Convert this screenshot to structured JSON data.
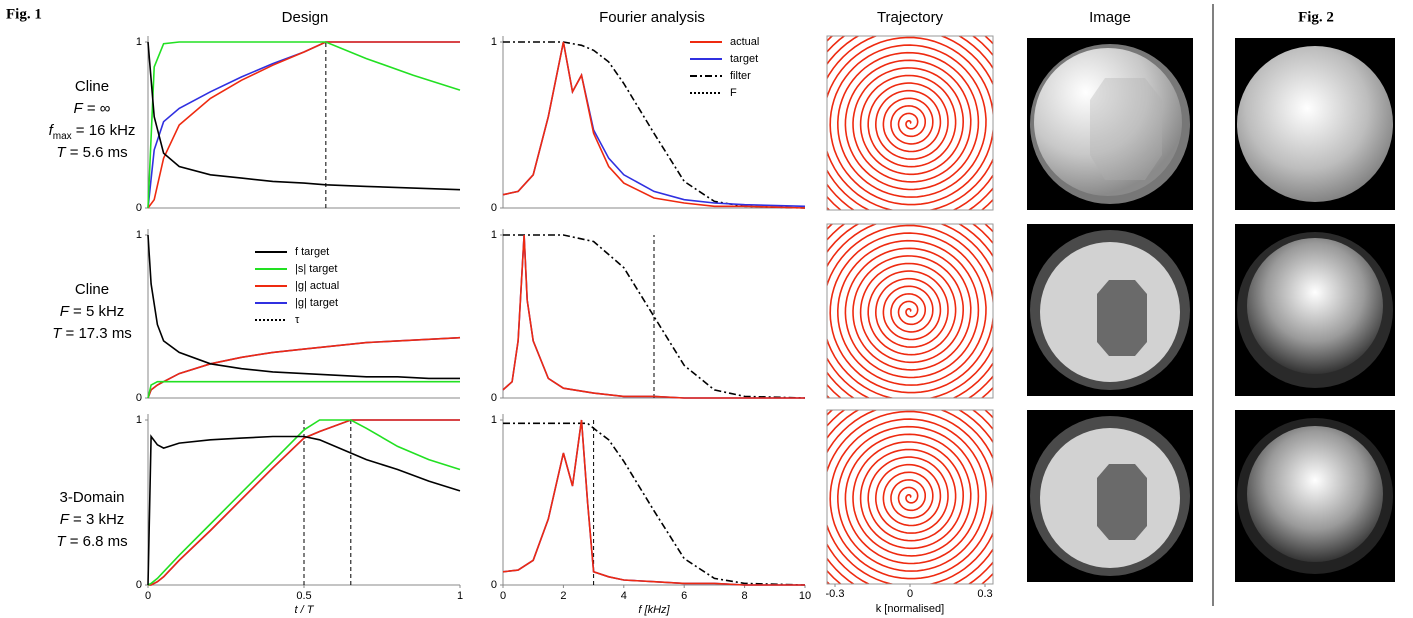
{
  "figure_labels": [
    "Fig. 1",
    "Fig. 2"
  ],
  "column_titles": [
    "Design",
    "Fourier analysis",
    "Trajectory",
    "Image"
  ],
  "row_labels": [
    [
      [
        {
          "text": "Cline"
        }
      ],
      [
        {
          "text": "F",
          "style": "italic"
        },
        {
          "text": " = ∞"
        }
      ],
      [
        {
          "text": "f",
          "style": "italic"
        },
        {
          "text": "max",
          "style": "sub"
        },
        {
          "text": " = 16 kHz"
        }
      ],
      [
        {
          "text": "T",
          "style": "italic"
        },
        {
          "text": " = 5.6 ms"
        }
      ]
    ],
    [
      [
        {
          "text": "Cline"
        }
      ],
      [
        {
          "text": "F",
          "style": "italic"
        },
        {
          "text": " = 5 kHz"
        }
      ],
      [
        {
          "text": "T",
          "style": "italic"
        },
        {
          "text": " = 17.3 ms"
        }
      ]
    ],
    [
      [
        {
          "text": "3-Domain"
        }
      ],
      [
        {
          "text": "F",
          "style": "italic"
        },
        {
          "text": " = 3 kHz"
        }
      ],
      [
        {
          "text": "T",
          "style": "italic"
        },
        {
          "text": " = 6.8 ms"
        }
      ]
    ]
  ],
  "chart_data": [
    {
      "type": "line",
      "xlim": [
        0,
        1
      ],
      "ylim": [
        0,
        1
      ],
      "yticks": [
        0,
        1
      ],
      "x": [
        0,
        0.02,
        0.05,
        0.1,
        0.2,
        0.3,
        0.4,
        0.5,
        0.57,
        0.7,
        0.85,
        1
      ],
      "series": [
        {
          "color": "#3030e0",
          "values": [
            0,
            0.35,
            0.52,
            0.6,
            0.7,
            0.79,
            0.87,
            0.94,
            1,
            1,
            1,
            1
          ]
        },
        {
          "color": "#ee2a10",
          "values": [
            0,
            0.05,
            0.3,
            0.5,
            0.66,
            0.77,
            0.86,
            0.94,
            1,
            1,
            1,
            1
          ]
        },
        {
          "color": "#22e022",
          "values": [
            0,
            0.85,
            0.99,
            1,
            1,
            1,
            1,
            1,
            1,
            0.9,
            0.8,
            0.71
          ]
        },
        {
          "color": "#000000",
          "values": [
            1,
            0.55,
            0.33,
            0.25,
            0.2,
            0.18,
            0.16,
            0.15,
            0.14,
            0.13,
            0.12,
            0.11
          ]
        }
      ],
      "vlines": {
        "dash": "4 3",
        "values": [
          0.57
        ]
      }
    },
    {
      "type": "line",
      "xlim": [
        0,
        1
      ],
      "ylim": [
        0,
        1
      ],
      "yticks": [
        0,
        1
      ],
      "x": [
        0,
        0.01,
        0.03,
        0.05,
        0.1,
        0.2,
        0.3,
        0.4,
        0.5,
        0.6,
        0.7,
        0.8,
        0.9,
        1
      ],
      "series": [
        {
          "name": "|g| target",
          "color": "#3030e0",
          "values": [
            0,
            0.05,
            0.08,
            0.1,
            0.15,
            0.21,
            0.25,
            0.28,
            0.3,
            0.32,
            0.34,
            0.35,
            0.36,
            0.37
          ]
        },
        {
          "name": "|g| actual",
          "color": "#ee2a10",
          "values": [
            0,
            0.05,
            0.08,
            0.1,
            0.15,
            0.21,
            0.25,
            0.28,
            0.3,
            0.32,
            0.34,
            0.35,
            0.36,
            0.37
          ]
        },
        {
          "name": "|s| target",
          "color": "#22e022",
          "values": [
            0,
            0.08,
            0.1,
            0.1,
            0.1,
            0.1,
            0.1,
            0.1,
            0.1,
            0.1,
            0.1,
            0.1,
            0.1,
            0.1
          ]
        },
        {
          "name": "f  target",
          "color": "#000000",
          "values": [
            1,
            0.7,
            0.45,
            0.35,
            0.28,
            0.21,
            0.18,
            0.16,
            0.15,
            0.14,
            0.13,
            0.13,
            0.12,
            0.12
          ]
        }
      ],
      "vlines": {
        "name": "τ",
        "dash": "2 2",
        "values": []
      },
      "legend": true
    },
    {
      "type": "line",
      "xlim": [
        0,
        1
      ],
      "ylim": [
        0,
        1
      ],
      "yticks": [
        0,
        1
      ],
      "xticks": [
        0,
        0.5,
        1
      ],
      "xlabel": "t / T",
      "x": [
        0,
        0.01,
        0.03,
        0.05,
        0.1,
        0.2,
        0.3,
        0.4,
        0.5,
        0.55,
        0.65,
        0.7,
        0.8,
        0.9,
        1
      ],
      "series": [
        {
          "color": "#3030e0",
          "values": [
            0,
            0,
            0.02,
            0.05,
            0.15,
            0.33,
            0.52,
            0.71,
            0.89,
            0.93,
            1,
            1,
            1,
            1,
            1
          ]
        },
        {
          "color": "#ee2a10",
          "values": [
            0,
            0,
            0.02,
            0.05,
            0.15,
            0.33,
            0.52,
            0.71,
            0.89,
            0.93,
            1,
            1,
            1,
            1,
            1
          ]
        },
        {
          "color": "#22e022",
          "values": [
            0,
            0.01,
            0.04,
            0.08,
            0.18,
            0.37,
            0.56,
            0.75,
            0.94,
            1,
            1,
            0.95,
            0.84,
            0.76,
            0.7
          ]
        },
        {
          "color": "#000000",
          "values": [
            0,
            0.9,
            0.85,
            0.83,
            0.86,
            0.88,
            0.89,
            0.9,
            0.9,
            0.88,
            0.8,
            0.76,
            0.7,
            0.63,
            0.57
          ]
        }
      ],
      "vlines": {
        "dash": "4 3",
        "values": [
          0.5,
          0.65
        ]
      }
    },
    {
      "type": "line",
      "xlim": [
        0,
        10
      ],
      "ylim": [
        0,
        1
      ],
      "yticks": [
        0,
        1
      ],
      "x": [
        0,
        0.5,
        1,
        1.5,
        2,
        2.3,
        2.6,
        3,
        3.5,
        4,
        5,
        6,
        7,
        8,
        10
      ],
      "series": [
        {
          "name": "filter",
          "color": "#000000",
          "dash": "7 3 2 3",
          "values": [
            1,
            1,
            1,
            1,
            1,
            0.99,
            0.98,
            0.95,
            0.88,
            0.75,
            0.45,
            0.16,
            0.04,
            0.01,
            0
          ]
        },
        {
          "name": "target",
          "color": "#3030e0",
          "values": [
            0.08,
            0.1,
            0.2,
            0.55,
            1,
            0.7,
            0.8,
            0.47,
            0.3,
            0.2,
            0.1,
            0.05,
            0.03,
            0.02,
            0.01
          ]
        },
        {
          "name": "actual",
          "color": "#ee2a10",
          "values": [
            0.08,
            0.1,
            0.2,
            0.55,
            1,
            0.7,
            0.8,
            0.45,
            0.25,
            0.15,
            0.06,
            0.03,
            0.01,
            0.01,
            0
          ]
        }
      ],
      "vlines": {
        "name": "F",
        "dash": "2 2",
        "values": []
      },
      "legend": true
    },
    {
      "type": "line",
      "xlim": [
        0,
        10
      ],
      "ylim": [
        0,
        1
      ],
      "yticks": [
        0,
        1
      ],
      "x": [
        0,
        0.3,
        0.5,
        0.7,
        0.8,
        1,
        1.5,
        2,
        3,
        4,
        5,
        6,
        7,
        8,
        10
      ],
      "series": [
        {
          "color": "#000000",
          "dash": "7 3 2 3",
          "values": [
            1,
            1,
            1,
            1,
            1,
            1,
            1,
            1,
            0.96,
            0.8,
            0.5,
            0.2,
            0.05,
            0.01,
            0
          ]
        },
        {
          "color": "#3030e0",
          "values": [
            0.05,
            0.1,
            0.35,
            1,
            0.6,
            0.35,
            0.12,
            0.06,
            0.03,
            0.01,
            0.01,
            0,
            0,
            0,
            0
          ]
        },
        {
          "color": "#ee2a10",
          "values": [
            0.05,
            0.1,
            0.35,
            1,
            0.6,
            0.35,
            0.12,
            0.06,
            0.03,
            0.01,
            0.01,
            0,
            0,
            0,
            0
          ]
        }
      ],
      "vlines": {
        "dash": "4 3",
        "values": [
          5
        ]
      }
    },
    {
      "type": "line",
      "xlim": [
        0,
        10
      ],
      "ylim": [
        0,
        1
      ],
      "yticks": [
        0,
        1
      ],
      "xticks": [
        0,
        2,
        4,
        6,
        8,
        10
      ],
      "xlabel": "f [kHz]",
      "x": [
        0,
        0.5,
        1,
        1.5,
        2,
        2.3,
        2.6,
        2.8,
        3,
        3.5,
        4,
        5,
        6,
        7,
        8,
        10
      ],
      "series": [
        {
          "color": "#000000",
          "dash": "7 3 2 3",
          "values": [
            0.98,
            0.98,
            0.98,
            0.98,
            0.98,
            0.98,
            0.98,
            0.98,
            0.95,
            0.88,
            0.75,
            0.45,
            0.16,
            0.04,
            0.01,
            0
          ]
        },
        {
          "color": "#3030e0",
          "values": [
            0.08,
            0.09,
            0.15,
            0.4,
            0.8,
            0.6,
            1,
            0.5,
            0.08,
            0.05,
            0.03,
            0.02,
            0.01,
            0.01,
            0,
            0
          ]
        },
        {
          "color": "#ee2a10",
          "values": [
            0.08,
            0.09,
            0.15,
            0.4,
            0.8,
            0.6,
            1,
            0.5,
            0.08,
            0.05,
            0.03,
            0.02,
            0.01,
            0.01,
            0,
            0
          ]
        }
      ],
      "vlines": {
        "dash": "4 3",
        "values": [
          3
        ]
      }
    }
  ],
  "trajectory": {
    "xlim": [
      -0.332,
      0.332
    ],
    "xticks": [
      -0.3,
      0,
      0.3
    ],
    "xlabel": "k [normalised]",
    "color": "#ee2a10"
  }
}
